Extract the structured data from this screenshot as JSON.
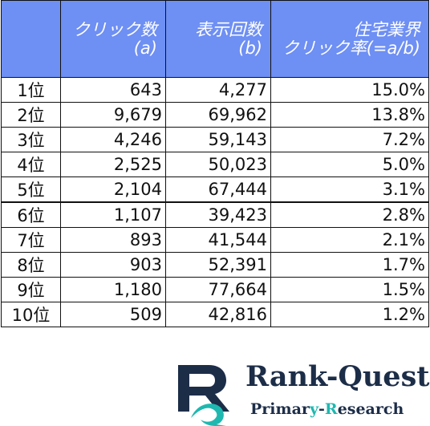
{
  "table": {
    "headers": [
      {
        "line1": "",
        "line2": ""
      },
      {
        "line1": "クリック数",
        "line2": "(a)"
      },
      {
        "line1": "表示回数",
        "line2": "(b)"
      },
      {
        "line1": "住宅業界",
        "line2": "クリック率(=a/b)"
      }
    ],
    "rows": [
      {
        "rank": "1位",
        "clicks": "643",
        "impressions": "4,277",
        "ctr": "15.0%"
      },
      {
        "rank": "2位",
        "clicks": "9,679",
        "impressions": "69,962",
        "ctr": "13.8%"
      },
      {
        "rank": "3位",
        "clicks": "4,246",
        "impressions": "59,143",
        "ctr": "7.2%"
      },
      {
        "rank": "4位",
        "clicks": "2,525",
        "impressions": "50,023",
        "ctr": "5.0%"
      },
      {
        "rank": "5位",
        "clicks": "2,104",
        "impressions": "67,444",
        "ctr": "3.1%"
      },
      {
        "rank": "6位",
        "clicks": "1,107",
        "impressions": "39,423",
        "ctr": "2.8%"
      },
      {
        "rank": "7位",
        "clicks": "893",
        "impressions": "41,544",
        "ctr": "2.1%"
      },
      {
        "rank": "8位",
        "clicks": "903",
        "impressions": "52,391",
        "ctr": "1.7%"
      },
      {
        "rank": "9位",
        "clicks": "1,180",
        "impressions": "77,664",
        "ctr": "1.5%"
      },
      {
        "rank": "10位",
        "clicks": "509",
        "impressions": "42,816",
        "ctr": "1.2%"
      }
    ]
  },
  "logo": {
    "name": "Rank-Quest",
    "sub_pre": "Primar",
    "sub_y": "y",
    "sub_dash": "-",
    "sub_r": "R",
    "sub_post": "esearch",
    "colors": {
      "navy": "#1c2d48",
      "teal": "#1fb8b0",
      "header_blue": "#6e8ff3"
    }
  }
}
